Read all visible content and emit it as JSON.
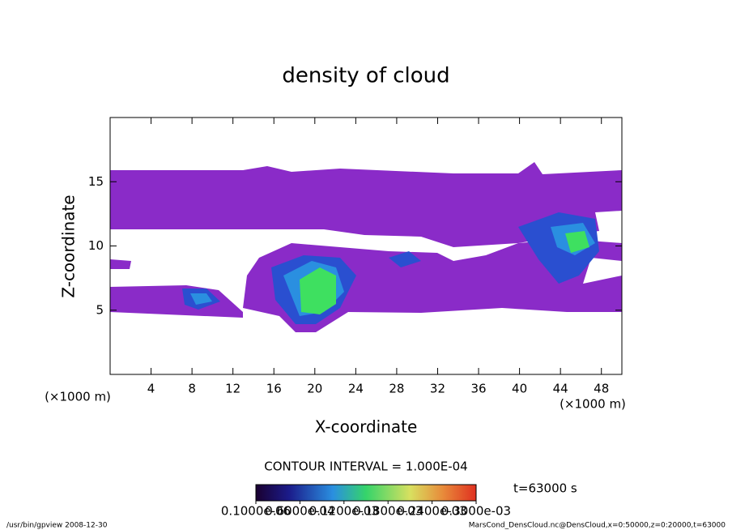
{
  "chart_data": {
    "type": "contour",
    "title": "density of cloud",
    "x_label": "X-coordinate",
    "y_label": "Z-coordinate",
    "x_unit": "(×1000 m)",
    "y_unit": "(×1000 m)",
    "xlim": [
      0,
      50
    ],
    "ylim": [
      0,
      20
    ],
    "xticks": [
      4,
      8,
      12,
      16,
      20,
      24,
      28,
      32,
      36,
      40,
      44,
      48
    ],
    "yticks": [
      5,
      10,
      15
    ],
    "contour_interval": "CONTOUR INTERVAL = 1.000E-04",
    "time_label": "t=63000 s",
    "colorbar_ticks": [
      {
        "value": 1e-07,
        "label": "0.1000e-06"
      },
      {
        "value": 6e-05,
        "label": "0.6000e-04"
      },
      {
        "value": 0.00012,
        "label": "0.1200e-03"
      },
      {
        "value": 0.00018,
        "label": "0.1800e-03"
      },
      {
        "value": 0.00024,
        "label": "0.2400e-03"
      },
      {
        "value": 0.0003,
        "label": "0.3000e-03"
      }
    ],
    "footer_left": "/usr/bin/gpview  2008-12-30",
    "footer_right": "MarsCond_DensCloud.nc@DensCloud,x=0:50000,z=0:20000,t=63000"
  }
}
